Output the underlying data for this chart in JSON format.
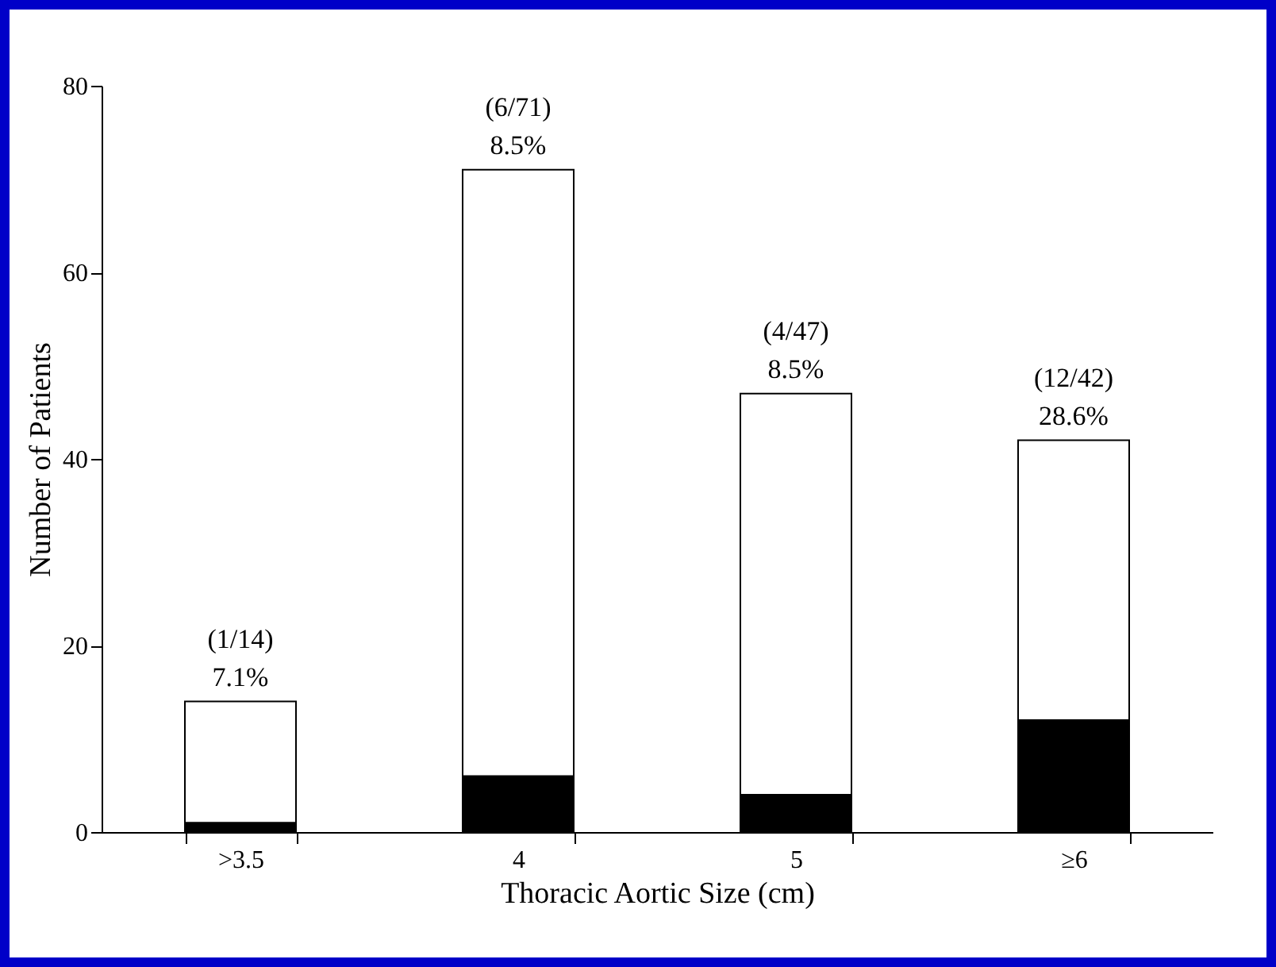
{
  "chart_data": {
    "type": "bar",
    "stacked": true,
    "xlabel": "Thoracic Aortic Size (cm)",
    "ylabel": "Number of Patients",
    "categories": [
      ">3.5",
      "4",
      "5",
      "≥6"
    ],
    "series": [
      {
        "color": "#000000",
        "values": [
          1,
          6,
          4,
          12
        ]
      },
      {
        "color": "#ffffff",
        "values": [
          13,
          65,
          43,
          30
        ]
      }
    ],
    "totals": [
      "(1/14)\n7.1%",
      "(6/71)\n8.5%",
      "(4/47)\n8.5%",
      "(12/42)\n28.6%"
    ],
    "ylim": [
      0,
      80
    ],
    "yticks": [
      0,
      20,
      40,
      60,
      80
    ],
    "grid": false,
    "legend": false
  }
}
